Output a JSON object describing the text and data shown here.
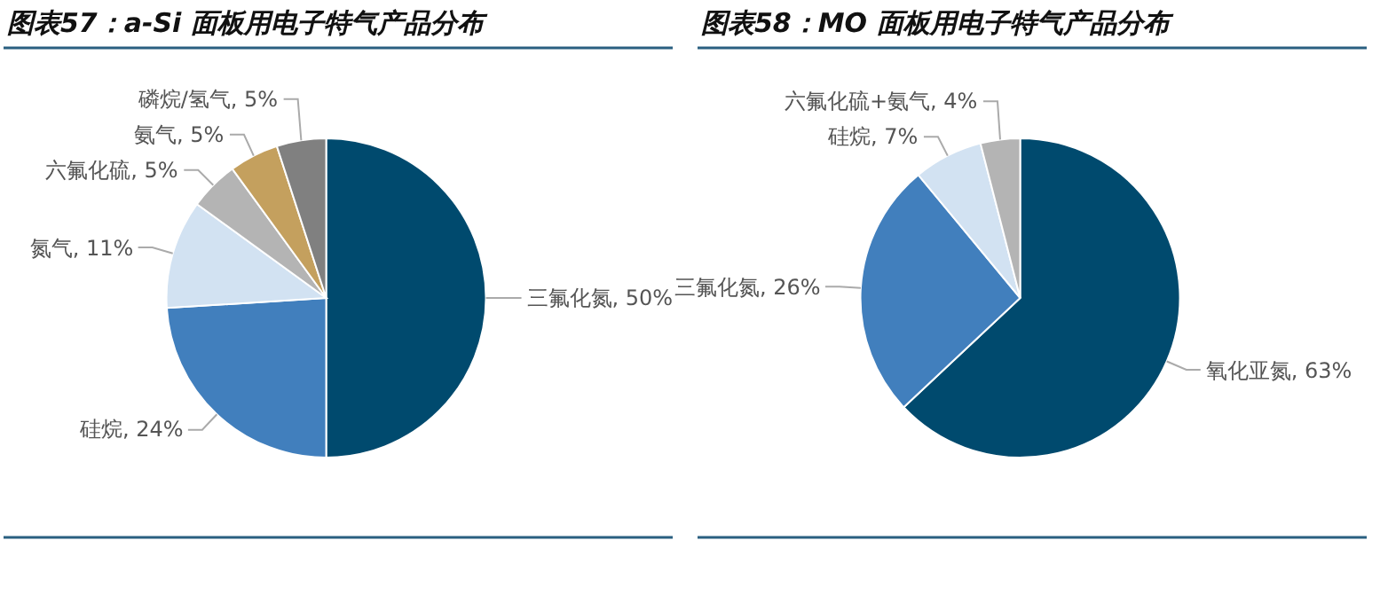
{
  "chart_data": [
    {
      "type": "pie",
      "title": "图表57：a-Si 面板用电子特气产品分布",
      "categories": [
        "三氟化氮",
        "硅烷",
        "氮气",
        "六氟化硫",
        "氨气",
        "磷烷/氢气"
      ],
      "values": [
        50,
        24,
        11,
        5,
        5,
        5
      ],
      "value_labels": [
        "50%",
        "24%",
        "11%",
        "5%",
        "5%",
        "5%"
      ],
      "colors": [
        "#004a6e",
        "#417fbd",
        "#d2e2f2",
        "#b4b4b4",
        "#c4a05e",
        "#808080"
      ]
    },
    {
      "type": "pie",
      "title": "图表58：MO 面板用电子特气产品分布",
      "categories": [
        "氧化亚氮",
        "三氟化氮",
        "硅烷",
        "六氟化硫+氨气"
      ],
      "values": [
        63,
        26,
        7,
        4
      ],
      "value_labels": [
        "63%",
        "26%",
        "7%",
        "4%"
      ],
      "colors": [
        "#004a6e",
        "#417fbd",
        "#d2e2f2",
        "#b4b4b4"
      ]
    }
  ]
}
